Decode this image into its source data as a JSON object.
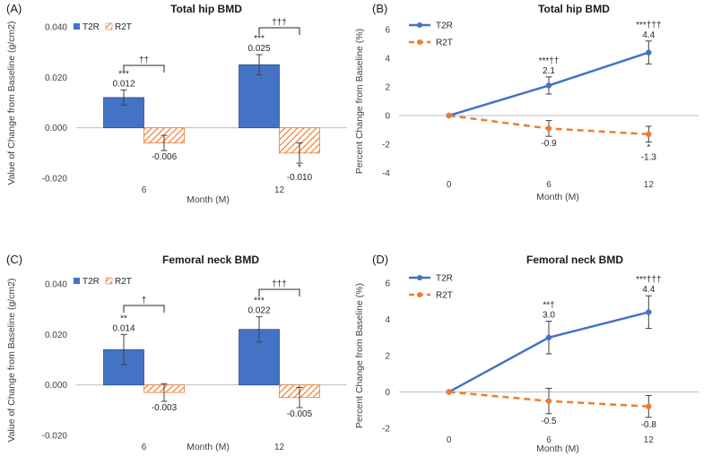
{
  "colors": {
    "t2r": "#4472C4",
    "r2t": "#ED7D31",
    "bar_edge": "#2F528F",
    "axis": "#BFBFBF",
    "error": "#404040",
    "text": "#404040"
  },
  "chart_data": [
    {
      "id": "A",
      "panel_label": "(A)",
      "type": "bar",
      "title": "Total hip BMD",
      "xlabel": "Month (M)",
      "ylabel": "Value of Change from Baseline (g/cm2)",
      "ylim": [
        -0.02,
        0.04
      ],
      "yticks": [
        -0.02,
        0,
        0.02,
        0.04
      ],
      "ytick_labels": [
        "-0.020",
        "0.000",
        "0.020",
        "0.040"
      ],
      "categories": [
        "6",
        "12"
      ],
      "legend": [
        "T2R",
        "R2T"
      ],
      "series": [
        {
          "name": "T2R",
          "values": [
            0.012,
            0.025
          ],
          "error": [
            0.003,
            0.004
          ],
          "labels": [
            "0.012",
            "0.025"
          ],
          "sig": [
            "***",
            "***"
          ]
        },
        {
          "name": "R2T",
          "values": [
            -0.006,
            -0.01
          ],
          "error": [
            0.003,
            0.004
          ],
          "labels": [
            "-0.006",
            "-0.010"
          ],
          "sig": [
            "",
            "*"
          ]
        }
      ],
      "brackets": [
        "††",
        "†††"
      ]
    },
    {
      "id": "B",
      "panel_label": "(B)",
      "type": "line",
      "title": "Total hip BMD",
      "xlabel": "Month (M)",
      "ylabel": "Percent Change from Baseline (%)",
      "ylim": [
        -4,
        6
      ],
      "yticks": [
        -4,
        -2,
        0,
        2,
        4,
        6
      ],
      "ytick_labels": [
        "-4",
        "-2",
        "0",
        "2",
        "4",
        "6"
      ],
      "x": [
        "0",
        "6",
        "12"
      ],
      "legend": [
        "T2R",
        "R2T"
      ],
      "series": [
        {
          "name": "T2R",
          "values": [
            0,
            2.1,
            4.4
          ],
          "error": [
            0,
            0.6,
            0.8
          ],
          "labels": [
            "",
            "2.1",
            "4.4"
          ],
          "sig": [
            "",
            "***††",
            "***†††"
          ]
        },
        {
          "name": "R2T",
          "values": [
            0,
            -0.9,
            -1.3
          ],
          "error": [
            0,
            0.55,
            0.55
          ],
          "labels": [
            "",
            "-0.9",
            "-1.3"
          ],
          "sig": [
            "",
            "",
            "*"
          ]
        }
      ]
    },
    {
      "id": "C",
      "panel_label": "(C)",
      "type": "bar",
      "title": "Femoral neck BMD",
      "xlabel": "Month (M)",
      "ylabel": "Value of Change from Baseline (g/cm2)",
      "ylim": [
        -0.02,
        0.04
      ],
      "yticks": [
        -0.02,
        0,
        0.02,
        0.04
      ],
      "ytick_labels": [
        "-0.020",
        "0.000",
        "0.020",
        "0.040"
      ],
      "categories": [
        "6",
        "12"
      ],
      "legend": [
        "T2R",
        "R2T"
      ],
      "series": [
        {
          "name": "T2R",
          "values": [
            0.014,
            0.022
          ],
          "error": [
            0.006,
            0.005
          ],
          "labels": [
            "0.014",
            "0.022"
          ],
          "sig": [
            "**",
            "***"
          ]
        },
        {
          "name": "R2T",
          "values": [
            -0.003,
            -0.005
          ],
          "error": [
            0.0035,
            0.004
          ],
          "labels": [
            "-0.003",
            "-0.005"
          ],
          "sig": [
            "",
            ""
          ]
        }
      ],
      "brackets": [
        "†",
        "†††"
      ]
    },
    {
      "id": "D",
      "panel_label": "(D)",
      "type": "line",
      "title": "Femoral neck BMD",
      "xlabel": "Month (M)",
      "ylabel": "Percent Change from Baseline (%)",
      "ylim": [
        -2,
        6
      ],
      "yticks": [
        -2,
        0,
        2,
        4,
        6
      ],
      "ytick_labels": [
        "-2",
        "0",
        "2",
        "4",
        "6"
      ],
      "x": [
        "0",
        "6",
        "12"
      ],
      "legend": [
        "T2R",
        "R2T"
      ],
      "series": [
        {
          "name": "T2R",
          "values": [
            0,
            3.0,
            4.4
          ],
          "error": [
            0,
            0.9,
            0.9
          ],
          "labels": [
            "",
            "3.0",
            "4.4"
          ],
          "sig": [
            "",
            "**†",
            "***†††"
          ]
        },
        {
          "name": "R2T",
          "values": [
            0,
            -0.5,
            -0.8
          ],
          "error": [
            0,
            0.7,
            0.6
          ],
          "labels": [
            "",
            "-0.5",
            "-0.8"
          ],
          "sig": [
            "",
            "",
            ""
          ]
        }
      ]
    }
  ]
}
